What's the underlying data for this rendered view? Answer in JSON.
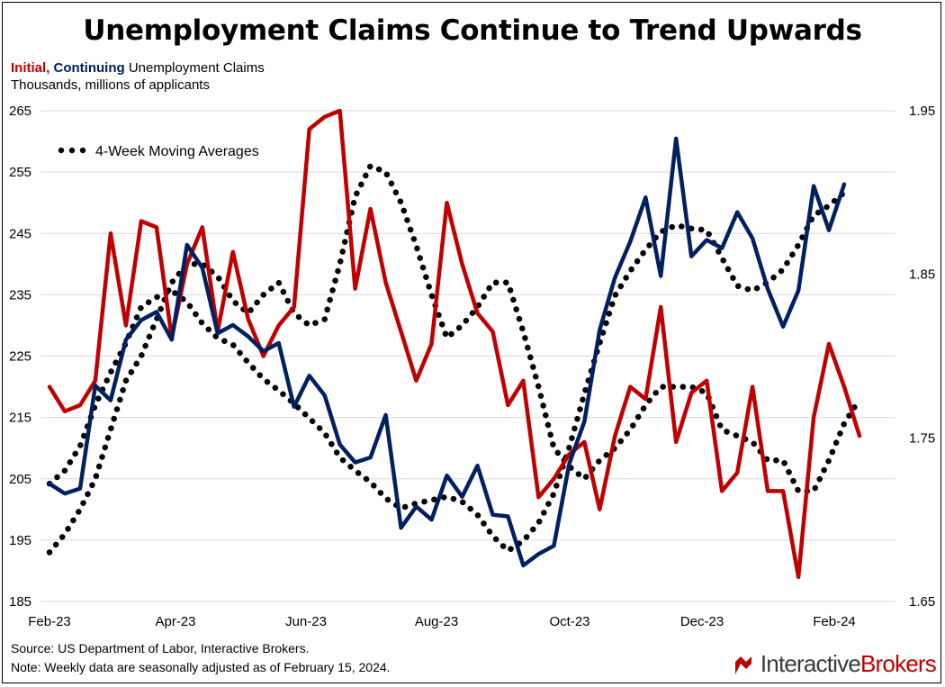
{
  "title": "Unemployment Claims Continue to Trend Upwards",
  "subtitle": {
    "initial": "Initial,",
    "continuing": "Continuing",
    "rest": "Unemployment Claims",
    "units": "Thousands, millions of applicants"
  },
  "footer": {
    "source": "Source: US Department of Labor, Interactive Brokers.",
    "note": "Note: Weekly data are seasonally adjusted as of February 15, 2024."
  },
  "brand": {
    "part1": "Interactive",
    "part2": "Brokers"
  },
  "colors": {
    "initial": "#c00000",
    "continuing": "#002060",
    "average": "#000000",
    "grid": "#d9d9d9"
  },
  "chart_data": {
    "type": "line",
    "x_tick_labels": [
      "Feb-23",
      "Apr-23",
      "Jun-23",
      "Aug-23",
      "Oct-23",
      "Dec-23",
      "Feb-24"
    ],
    "y_left": {
      "ticks": [
        "185",
        "195",
        "205",
        "215",
        "225",
        "235",
        "245",
        "255",
        "265"
      ],
      "range": [
        185,
        265
      ]
    },
    "y_right": {
      "ticks": [
        "1.65",
        "1.75",
        "1.85",
        "1.95"
      ],
      "range": [
        1.65,
        1.95
      ]
    },
    "legend": "4-Week Moving Averages",
    "grid": "horizontal",
    "series": [
      {
        "key": "initial",
        "axis": "left",
        "values": [
          220,
          216,
          217,
          221,
          245,
          230,
          247,
          246,
          228,
          240,
          246,
          229,
          242,
          231,
          225,
          230,
          233,
          262,
          264,
          265,
          236,
          249,
          237,
          229,
          221,
          227,
          250,
          240,
          232,
          229,
          217,
          221,
          202,
          205,
          209,
          211,
          200,
          212,
          220,
          218,
          233,
          211,
          219,
          221,
          203,
          206,
          220,
          203,
          203,
          189,
          215,
          227,
          220,
          212
        ]
      },
      {
        "key": "continuing",
        "axis": "right",
        "values": [
          1.722,
          1.716,
          1.719,
          1.782,
          1.773,
          1.81,
          1.822,
          1.827,
          1.81,
          1.868,
          1.854,
          1.814,
          1.819,
          1.812,
          1.803,
          1.808,
          1.769,
          1.788,
          1.776,
          1.746,
          1.735,
          1.738,
          1.764,
          1.695,
          1.708,
          1.7,
          1.727,
          1.714,
          1.733,
          1.703,
          1.702,
          1.672,
          1.679,
          1.684,
          1.734,
          1.76,
          1.816,
          1.848,
          1.87,
          1.897,
          1.849,
          1.933,
          1.861,
          1.871,
          1.866,
          1.888,
          1.872,
          1.841,
          1.818,
          1.84,
          1.904,
          1.877,
          1.905
        ]
      },
      {
        "key": "initial_4wk",
        "axis": "left",
        "values": [
          193,
          196,
          200,
          205,
          213,
          221,
          225,
          231,
          237,
          240,
          240,
          238,
          234,
          232,
          235,
          237,
          232,
          230,
          231,
          240,
          251,
          256,
          255,
          250,
          243,
          235,
          228,
          230,
          233,
          237,
          237,
          229,
          220,
          210,
          207,
          205,
          208,
          210,
          213,
          217,
          220,
          220,
          220,
          219,
          213,
          212,
          211,
          208,
          208,
          203,
          203,
          208,
          214,
          218
        ]
      },
      {
        "key": "continuing_4wk",
        "axis": "right",
        "values": [
          1.722,
          1.73,
          1.745,
          1.77,
          1.79,
          1.808,
          1.83,
          1.836,
          1.84,
          1.833,
          1.82,
          1.811,
          1.807,
          1.796,
          1.786,
          1.779,
          1.771,
          1.762,
          1.753,
          1.738,
          1.73,
          1.723,
          1.713,
          1.707,
          1.71,
          1.712,
          1.714,
          1.711,
          1.703,
          1.69,
          1.681,
          1.687,
          1.698,
          1.716,
          1.744,
          1.777,
          1.808,
          1.837,
          1.852,
          1.865,
          1.876,
          1.88,
          1.878,
          1.877,
          1.86,
          1.843,
          1.84,
          1.845,
          1.853,
          1.868,
          1.886,
          1.892,
          1.9
        ]
      }
    ]
  }
}
